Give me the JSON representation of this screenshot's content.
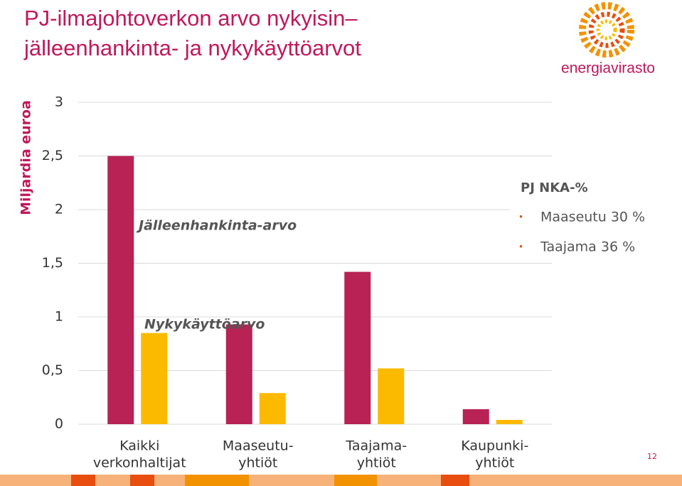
{
  "chart_data": {
    "type": "bar",
    "title": [
      "PJ-ilmajohtoverkon arvo nykyisin–",
      "jälleenhankinta- ja nykykäyttöarvot"
    ],
    "y_label": "Miljardia euroa",
    "categories": [
      [
        "Kaikki",
        "verkonhaltijat"
      ],
      [
        "Maaseutu-",
        "yhtiöt"
      ],
      [
        "Taajama-",
        "yhtiöt"
      ],
      [
        "Kaupunki-",
        "yhtiöt"
      ]
    ],
    "series": [
      {
        "name": "Jälleenhankinta-arvo",
        "color": "#b82255",
        "values": [
          2.5,
          0.93,
          1.42,
          0.14
        ]
      },
      {
        "name": "Nykykäyttöarvo",
        "color": "#fbba00",
        "values": [
          0.85,
          0.29,
          0.52,
          0.04
        ]
      }
    ],
    "ylim": [
      0,
      3
    ],
    "yticks": [
      0,
      {
        "value": 0.5,
        "label": "0,5"
      },
      1,
      {
        "value": 1.5,
        "label": "1,5"
      },
      2,
      {
        "value": 2.5,
        "label": "2,5"
      },
      3
    ],
    "grid": true,
    "annotation_box": {
      "title": "PJ NKA-%",
      "items": [
        "Maaseutu 30 %",
        "Taajama 36 %"
      ]
    }
  },
  "logo": "energiavirasto",
  "page_number": 12
}
